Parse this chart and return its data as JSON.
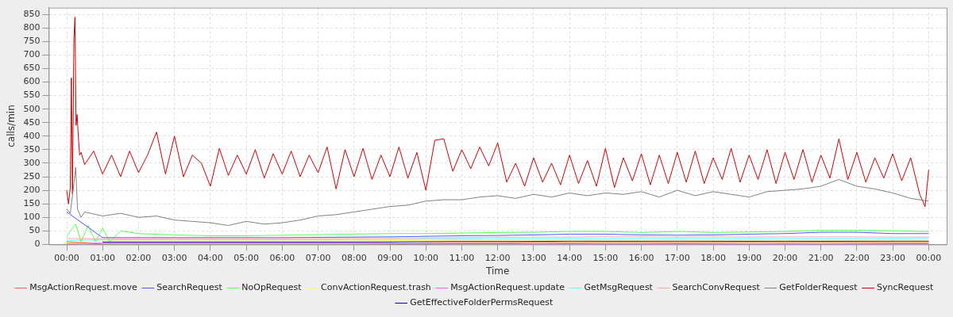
{
  "chart_data": {
    "type": "line",
    "xlabel": "Time",
    "ylabel": "calls/min",
    "xlim": [
      -0.5,
      24.5
    ],
    "ylim": [
      0,
      875
    ],
    "xticks": [
      {
        "value": 0,
        "label": "00:00"
      },
      {
        "value": 1,
        "label": "01:00"
      },
      {
        "value": 2,
        "label": "02:00"
      },
      {
        "value": 3,
        "label": "03:00"
      },
      {
        "value": 4,
        "label": "04:00"
      },
      {
        "value": 5,
        "label": "05:00"
      },
      {
        "value": 6,
        "label": "06:00"
      },
      {
        "value": 7,
        "label": "07:00"
      },
      {
        "value": 8,
        "label": "08:00"
      },
      {
        "value": 9,
        "label": "09:00"
      },
      {
        "value": 10,
        "label": "10:00"
      },
      {
        "value": 11,
        "label": "11:00"
      },
      {
        "value": 12,
        "label": "12:00"
      },
      {
        "value": 13,
        "label": "13:00"
      },
      {
        "value": 14,
        "label": "14:00"
      },
      {
        "value": 15,
        "label": "15:00"
      },
      {
        "value": 16,
        "label": "16:00"
      },
      {
        "value": 17,
        "label": "17:00"
      },
      {
        "value": 18,
        "label": "18:00"
      },
      {
        "value": 19,
        "label": "19:00"
      },
      {
        "value": 20,
        "label": "20:00"
      },
      {
        "value": 21,
        "label": "21:00"
      },
      {
        "value": 22,
        "label": "22:00"
      },
      {
        "value": 23,
        "label": "23:00"
      },
      {
        "value": 24,
        "label": "00:00"
      }
    ],
    "yticks": [
      0,
      50,
      100,
      150,
      200,
      250,
      300,
      350,
      400,
      450,
      500,
      550,
      600,
      650,
      700,
      750,
      800,
      850
    ],
    "grid": true,
    "legend": "bottom",
    "marker": "none",
    "series": [
      {
        "name": "MsgActionRequest.move",
        "color": "#ff5555",
        "x": [
          0,
          1,
          2,
          3,
          4,
          5,
          6,
          7,
          8,
          9,
          10,
          11,
          12,
          13,
          14,
          15,
          16,
          17,
          18,
          19,
          20,
          21,
          22,
          23,
          24
        ],
        "values": [
          10,
          1,
          1,
          1,
          1,
          1,
          1,
          1,
          1,
          2,
          4,
          5,
          5,
          7,
          6,
          7,
          7,
          6,
          7,
          8,
          7,
          8,
          7,
          6,
          6
        ]
      },
      {
        "name": "SearchRequest",
        "color": "#5555ff",
        "x": [
          0,
          1,
          2,
          3,
          4,
          5,
          6,
          7,
          8,
          9,
          10,
          11,
          12,
          13,
          14,
          15,
          16,
          17,
          18,
          19,
          20,
          21,
          22,
          23,
          24
        ],
        "values": [
          120,
          25,
          25,
          25,
          25,
          25,
          25,
          26,
          27,
          28,
          30,
          32,
          33,
          35,
          38,
          38,
          35,
          34,
          35,
          38,
          40,
          45,
          45,
          40,
          40
        ]
      },
      {
        "name": "NoOpRequest",
        "color": "#55ff55",
        "x": [
          0,
          0.25,
          0.4,
          0.6,
          0.8,
          1,
          1.2,
          1.5,
          2,
          3,
          4,
          5,
          6,
          7,
          8,
          9,
          10,
          11,
          12,
          13,
          14,
          15,
          16,
          17,
          18,
          19,
          20,
          21,
          22,
          23,
          24
        ],
        "values": [
          30,
          75,
          10,
          70,
          10,
          60,
          10,
          50,
          40,
          35,
          32,
          32,
          34,
          36,
          38,
          40,
          40,
          42,
          44,
          45,
          48,
          48,
          44,
          48,
          44,
          46,
          48,
          52,
          52,
          50,
          48
        ]
      },
      {
        "name": "ConvActionRequest.trash",
        "color": "#ffff55",
        "x": [
          0,
          1,
          2,
          3,
          4,
          5,
          6,
          7,
          8,
          9,
          10,
          11,
          12,
          13,
          14,
          15,
          16,
          17,
          18,
          19,
          20,
          21,
          22,
          23,
          24
        ],
        "values": [
          5,
          13,
          13,
          13,
          13,
          13,
          13,
          13,
          13,
          14,
          15,
          16,
          16,
          16,
          16,
          16,
          16,
          16,
          16,
          16,
          16,
          16,
          16,
          16,
          16
        ]
      },
      {
        "name": "MsgActionRequest.update",
        "color": "#ff55ff",
        "x": [
          0,
          1,
          2,
          3,
          4,
          5,
          6,
          7,
          8,
          9,
          10,
          11,
          12,
          13,
          14,
          15,
          16,
          17,
          18,
          19,
          20,
          21,
          22,
          23,
          24
        ],
        "values": [
          3,
          5,
          5,
          5,
          5,
          5,
          5,
          5,
          5,
          4,
          2,
          2,
          2,
          2,
          2,
          2,
          2,
          2,
          2,
          2,
          2,
          2,
          2,
          2,
          2
        ]
      },
      {
        "name": "GetMsgRequest",
        "color": "#55ffff",
        "x": [
          0,
          1,
          2,
          3,
          4,
          5,
          6,
          7,
          8,
          9,
          10,
          11,
          12,
          13,
          14,
          15,
          16,
          17,
          18,
          19,
          20,
          21,
          22,
          23,
          24
        ],
        "values": [
          15,
          17,
          17,
          17,
          17,
          17,
          17,
          17,
          17,
          18,
          19,
          20,
          20,
          21,
          21,
          21,
          22,
          21,
          22,
          21,
          22,
          22,
          22,
          21,
          22
        ]
      },
      {
        "name": "SearchConvRequest",
        "color": "#ffaaaa",
        "x": [
          0,
          1,
          2,
          3,
          4,
          5,
          6,
          7,
          8,
          9,
          10,
          11,
          12,
          13,
          14,
          15,
          16,
          17,
          18,
          19,
          20,
          21,
          22,
          23,
          24
        ],
        "values": [
          22,
          21,
          21,
          21,
          21,
          21,
          21,
          21,
          22,
          23,
          24,
          25,
          26,
          27,
          27,
          28,
          28,
          27,
          28,
          27,
          28,
          28,
          28,
          27,
          27
        ]
      },
      {
        "name": "GetFolderRequest",
        "color": "#808080",
        "x": [
          0,
          0.1,
          0.2,
          0.25,
          0.3,
          0.4,
          0.5,
          1,
          1.5,
          2,
          2.5,
          3,
          3.5,
          4,
          4.5,
          5,
          5.5,
          6,
          6.5,
          7,
          7.5,
          8,
          8.5,
          9,
          9.5,
          10,
          10.5,
          11,
          11.5,
          12,
          12.5,
          13,
          13.5,
          14,
          14.5,
          15,
          15.5,
          16,
          16.5,
          17,
          17.5,
          18,
          18.5,
          19,
          19.5,
          20,
          20.5,
          21,
          21.5,
          22,
          22.5,
          23,
          23.5,
          24
        ],
        "values": [
          130,
          115,
          225,
          285,
          130,
          100,
          120,
          105,
          115,
          100,
          105,
          90,
          85,
          80,
          70,
          85,
          75,
          80,
          90,
          105,
          110,
          120,
          130,
          140,
          145,
          160,
          165,
          165,
          175,
          180,
          170,
          185,
          175,
          190,
          180,
          190,
          185,
          195,
          175,
          200,
          180,
          195,
          185,
          175,
          195,
          200,
          205,
          215,
          240,
          215,
          205,
          190,
          170,
          160
        ]
      },
      {
        "name": "SyncRequest",
        "color": "#cc0000",
        "x": [
          0,
          0.05,
          0.1,
          0.13,
          0.16,
          0.2,
          0.23,
          0.26,
          0.29,
          0.32,
          0.36,
          0.4,
          0.5,
          0.75,
          1,
          1.25,
          1.5,
          1.75,
          2,
          2.25,
          2.5,
          2.75,
          3,
          3.25,
          3.5,
          3.75,
          4,
          4.25,
          4.5,
          4.75,
          5,
          5.25,
          5.5,
          5.75,
          6,
          6.25,
          6.5,
          6.75,
          7,
          7.25,
          7.5,
          7.75,
          8,
          8.25,
          8.5,
          8.75,
          9,
          9.25,
          9.5,
          9.75,
          10,
          10.25,
          10.5,
          10.75,
          11,
          11.25,
          11.5,
          11.75,
          12,
          12.25,
          12.5,
          12.75,
          13,
          13.25,
          13.5,
          13.75,
          14,
          14.25,
          14.5,
          14.75,
          15,
          15.25,
          15.5,
          15.75,
          16,
          16.25,
          16.5,
          16.75,
          17,
          17.25,
          17.5,
          17.75,
          18,
          18.25,
          18.5,
          18.75,
          19,
          19.25,
          19.5,
          19.75,
          20,
          20.25,
          20.5,
          20.75,
          21,
          21.25,
          21.5,
          21.75,
          22,
          22.25,
          22.5,
          22.75,
          23,
          23.25,
          23.5,
          23.75,
          23.9,
          24
        ],
        "values": [
          200,
          150,
          210,
          615,
          185,
          760,
          840,
          440,
          480,
          405,
          330,
          340,
          295,
          345,
          260,
          330,
          250,
          345,
          265,
          330,
          415,
          260,
          400,
          250,
          330,
          300,
          215,
          355,
          255,
          330,
          260,
          350,
          245,
          335,
          260,
          345,
          250,
          330,
          265,
          360,
          205,
          350,
          250,
          355,
          240,
          330,
          250,
          360,
          245,
          340,
          200,
          385,
          390,
          270,
          350,
          280,
          360,
          290,
          375,
          230,
          300,
          215,
          320,
          230,
          300,
          220,
          330,
          225,
          310,
          215,
          355,
          210,
          320,
          235,
          335,
          220,
          330,
          225,
          340,
          230,
          345,
          225,
          320,
          240,
          355,
          230,
          330,
          240,
          350,
          225,
          340,
          240,
          350,
          230,
          330,
          245,
          390,
          240,
          340,
          230,
          320,
          245,
          335,
          235,
          320,
          185,
          140,
          275
        ]
      },
      {
        "name": "GetEffectiveFolderPermsRequest",
        "color": "#0000aa",
        "x": [
          1,
          2,
          3,
          4,
          5,
          6,
          7,
          8,
          9,
          10,
          11,
          12,
          13,
          14,
          15,
          16,
          17,
          18,
          19,
          20,
          21,
          22,
          23,
          24
        ],
        "values": [
          9,
          9,
          9,
          9,
          9,
          9,
          9,
          9,
          9,
          10,
          11,
          11,
          11,
          12,
          12,
          12,
          12,
          12,
          12,
          12,
          12,
          12,
          12,
          12
        ]
      }
    ]
  }
}
